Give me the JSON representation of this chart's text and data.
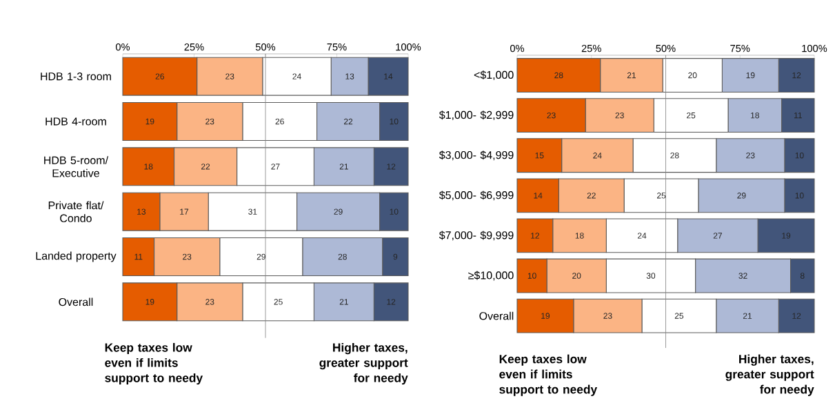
{
  "chart_data": [
    {
      "type": "bar",
      "orientation": "horizontal",
      "stacked": true,
      "data_labels": true,
      "categories": [
        "HDB 1-3 room",
        "HDB 4-room",
        "HDB 5-room/ Executive",
        "Private flat/ Condo",
        "Landed property",
        "Overall"
      ],
      "series": [
        {
          "color": "#e55c00",
          "values": [
            26,
            19,
            18,
            13,
            11,
            19
          ]
        },
        {
          "color": "#fbb484",
          "values": [
            23,
            23,
            22,
            17,
            23,
            23
          ]
        },
        {
          "color": "#ffffff",
          "values": [
            24,
            26,
            27,
            31,
            29,
            25
          ]
        },
        {
          "color": "#adb9d6",
          "values": [
            13,
            22,
            21,
            29,
            28,
            21
          ]
        },
        {
          "color": "#42557a",
          "values": [
            14,
            10,
            12,
            10,
            9,
            12
          ]
        }
      ],
      "xlim": [
        0,
        100
      ],
      "xticks": [
        {
          "value": 0,
          "label": "0%"
        },
        {
          "value": 25,
          "label": "25%"
        },
        {
          "value": 50,
          "label": "50%"
        },
        {
          "value": 75,
          "label": "75%"
        },
        {
          "value": 100,
          "label": "100%"
        }
      ],
      "ref_lines": [
        {
          "axis": "x",
          "value": 50
        }
      ],
      "annotations": [
        "Keep taxes low even if limits support to needy",
        "Higher taxes, greater support for needy"
      ]
    },
    {
      "type": "bar",
      "orientation": "horizontal",
      "stacked": true,
      "data_labels": true,
      "categories": [
        "<$1,000",
        "$1,000- $2,999",
        "$3,000- $4,999",
        "$5,000- $6,999",
        "$7,000- $9,999",
        "≥$10,000",
        "Overall"
      ],
      "series": [
        {
          "color": "#e55c00",
          "values": [
            28,
            23,
            15,
            14,
            12,
            10,
            19
          ]
        },
        {
          "color": "#fbb484",
          "values": [
            21,
            23,
            24,
            22,
            18,
            20,
            23
          ]
        },
        {
          "color": "#ffffff",
          "values": [
            20,
            25,
            28,
            25,
            24,
            30,
            25
          ]
        },
        {
          "color": "#adb9d6",
          "values": [
            19,
            18,
            23,
            29,
            27,
            32,
            21
          ]
        },
        {
          "color": "#42557a",
          "values": [
            12,
            11,
            10,
            10,
            19,
            8,
            12
          ]
        }
      ],
      "xlim": [
        0,
        100
      ],
      "xticks": [
        {
          "value": 0,
          "label": "0%"
        },
        {
          "value": 25,
          "label": "25%"
        },
        {
          "value": 50,
          "label": "50%"
        },
        {
          "value": 75,
          "label": "75%"
        },
        {
          "value": 100,
          "label": "100%"
        }
      ],
      "ref_lines": [
        {
          "axis": "x",
          "value": 50
        }
      ],
      "annotations": [
        "Keep taxes low even if limits support to needy",
        "Higher taxes, greater support for needy"
      ]
    }
  ]
}
